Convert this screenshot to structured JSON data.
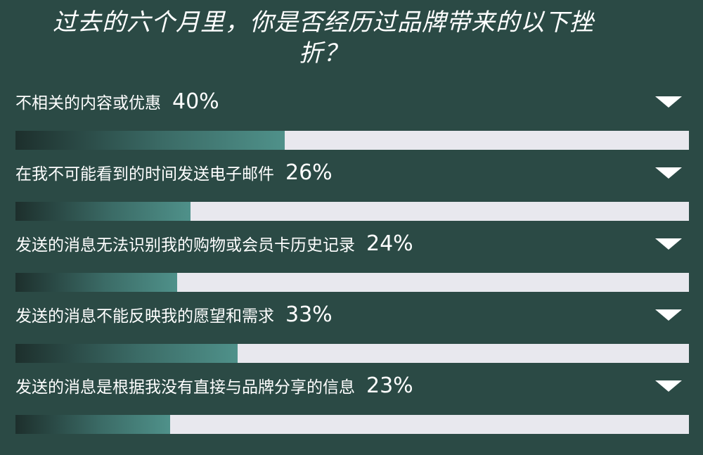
{
  "title": "过去的六个月里，你是否经历过品牌带来的以下挫折？",
  "colors": {
    "background": "#2b4a45",
    "track": "#e8e8ee",
    "fill_start": "#1d2f2c",
    "fill_end": "#4f918a"
  },
  "icons": {
    "toggle": "triangle-down-icon"
  },
  "chart_data": {
    "type": "bar",
    "orientation": "horizontal",
    "title": "过去的六个月里，你是否经历过品牌带来的以下挫折？",
    "ylim": [
      0,
      100
    ],
    "categories": [
      "不相关的内容或优惠",
      "在我不可能看到的时间发送电子邮件",
      "发送的消息无法识别我的购物或会员卡历史记录",
      "发送的消息不能反映我的愿望和需求",
      "发送的消息是根据我没有直接与品牌分享的信息"
    ],
    "values": [
      40,
      26,
      24,
      33,
      23
    ],
    "value_labels": [
      "40%",
      "26%",
      "24%",
      "33%",
      "23%"
    ]
  }
}
